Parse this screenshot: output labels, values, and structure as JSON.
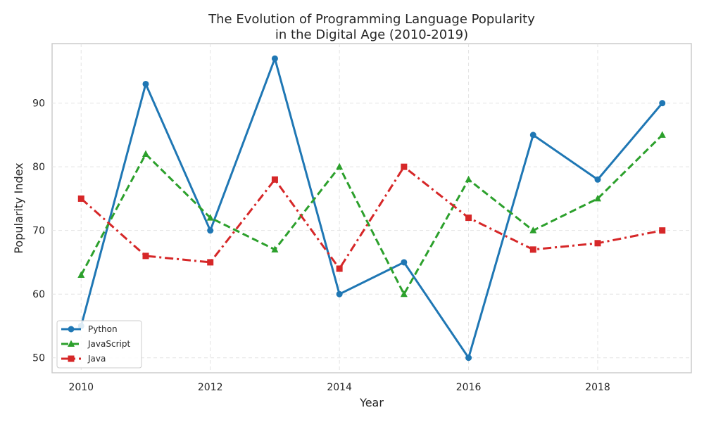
{
  "chart_data": {
    "type": "line",
    "title": "The Evolution of Programming Language Popularity\nin the Digital Age (2010-2019)",
    "xlabel": "Year",
    "ylabel": "Popularity Index",
    "x": [
      2010,
      2011,
      2012,
      2013,
      2014,
      2015,
      2016,
      2017,
      2018,
      2019
    ],
    "xlim": [
      2009.55,
      2019.45
    ],
    "ylim": [
      47.65,
      99.35
    ],
    "xticks": [
      2010,
      2012,
      2014,
      2016,
      2018
    ],
    "yticks": [
      50,
      60,
      70,
      80,
      90
    ],
    "grid": true,
    "legend_position": "lower-left",
    "series": [
      {
        "name": "Python",
        "values": [
          55,
          93,
          70,
          97,
          60,
          65,
          50,
          85,
          78,
          90
        ],
        "color": "#1f77b4",
        "marker": "circle",
        "line_style": "solid"
      },
      {
        "name": "JavaScript",
        "values": [
          63,
          82,
          72,
          67,
          80,
          60,
          78,
          70,
          75,
          85
        ],
        "color": "#2ca02c",
        "marker": "triangle",
        "line_style": "dashed"
      },
      {
        "name": "Java",
        "values": [
          75,
          66,
          65,
          78,
          64,
          80,
          72,
          67,
          68,
          70
        ],
        "color": "#d62728",
        "marker": "square",
        "line_style": "dashdot"
      }
    ]
  }
}
